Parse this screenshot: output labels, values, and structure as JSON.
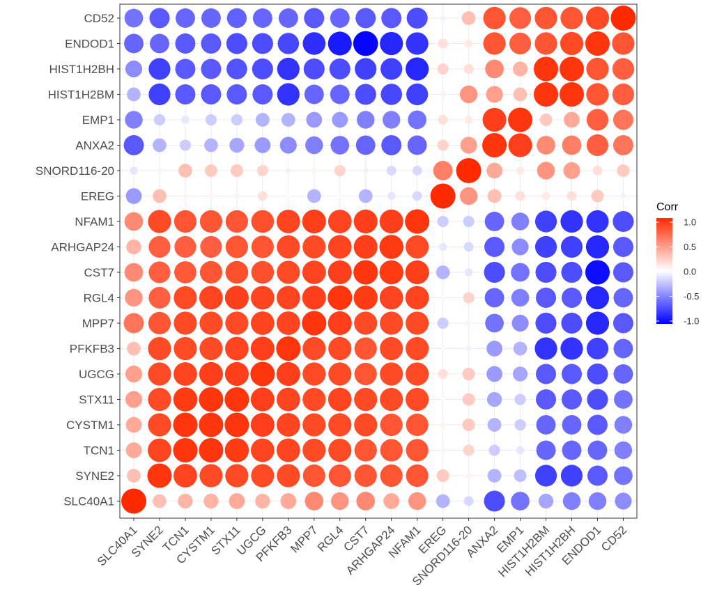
{
  "chart_data": {
    "type": "heatmap",
    "title": "",
    "xlabel": "",
    "ylabel": "",
    "x_labels": [
      "SLC40A1",
      "SYNE2",
      "TCN1",
      "CYSTM1",
      "STX11",
      "UGCG",
      "PFKFB3",
      "MPP7",
      "RGL4",
      "CST7",
      "ARHGAP24",
      "NFAM1",
      "EREG",
      "SNORD116-20",
      "ANXA2",
      "EMP1",
      "HIST1H2BM",
      "HIST1H2BH",
      "ENDOD1",
      "CD52"
    ],
    "y_labels": [
      "CD52",
      "ENDOD1",
      "HIST1H2BH",
      "HIST1H2BM",
      "EMP1",
      "ANXA2",
      "SNORD116-20",
      "EREG",
      "NFAM1",
      "ARHGAP24",
      "CST7",
      "RGL4",
      "MPP7",
      "PFKFB3",
      "UGCG",
      "STX11",
      "CYSTM1",
      "TCN1",
      "SYNE2",
      "SLC40A1"
    ],
    "values": [
      [
        -0.55,
        -0.65,
        -0.6,
        -0.6,
        -0.62,
        -0.6,
        -0.6,
        -0.65,
        -0.6,
        -0.65,
        -0.65,
        -0.7,
        -0.05,
        0.3,
        0.8,
        0.75,
        0.8,
        0.8,
        0.85,
        1.0
      ],
      [
        -0.6,
        -0.6,
        -0.65,
        -0.65,
        -0.7,
        -0.7,
        -0.72,
        -0.82,
        -0.9,
        -0.98,
        -0.85,
        -0.8,
        0.15,
        0.1,
        0.8,
        0.75,
        0.8,
        0.85,
        0.95,
        0.8
      ],
      [
        -0.45,
        -0.75,
        -0.65,
        -0.65,
        -0.68,
        -0.7,
        -0.8,
        -0.7,
        -0.7,
        -0.75,
        -0.75,
        -0.85,
        0.2,
        0.15,
        0.55,
        0.35,
        0.95,
        0.95,
        0.8,
        0.75
      ],
      [
        -0.3,
        -0.75,
        -0.65,
        -0.65,
        -0.65,
        -0.65,
        -0.8,
        -0.6,
        -0.6,
        -0.7,
        -0.72,
        -0.75,
        0.05,
        0.5,
        0.45,
        0.3,
        0.95,
        0.95,
        0.8,
        0.75
      ],
      [
        -0.5,
        -0.2,
        -0.1,
        -0.2,
        -0.2,
        -0.3,
        -0.3,
        -0.4,
        -0.4,
        -0.5,
        -0.5,
        -0.55,
        0.15,
        0.1,
        0.9,
        0.95,
        0.25,
        0.4,
        0.75,
        0.65
      ],
      [
        -0.65,
        -0.3,
        -0.2,
        -0.3,
        -0.35,
        -0.4,
        -0.45,
        -0.5,
        -0.55,
        -0.6,
        -0.65,
        -0.6,
        0.2,
        0.45,
        0.95,
        0.9,
        0.55,
        0.6,
        0.75,
        0.65
      ],
      [
        -0.1,
        0.05,
        0.3,
        0.25,
        0.25,
        0.2,
        -0.05,
        0.05,
        0.2,
        -0.05,
        -0.15,
        -0.15,
        0.6,
        1.0,
        0.4,
        0.1,
        0.5,
        0.45,
        0.15,
        0.25
      ],
      [
        -0.4,
        0.3,
        0.05,
        0.05,
        0.05,
        0.15,
        0.0,
        -0.3,
        0.0,
        -0.3,
        -0.1,
        -0.15,
        1.0,
        0.5,
        0.3,
        0.15,
        0.1,
        0.15,
        0.25,
        -0.05
      ],
      [
        0.55,
        0.85,
        0.8,
        0.8,
        0.8,
        0.82,
        0.88,
        0.9,
        0.88,
        0.9,
        0.9,
        0.95,
        -0.2,
        -0.2,
        -0.6,
        -0.5,
        -0.75,
        -0.8,
        -0.8,
        -0.7
      ],
      [
        0.35,
        0.75,
        0.75,
        0.75,
        0.8,
        0.8,
        0.85,
        0.85,
        0.88,
        0.9,
        0.92,
        0.85,
        -0.1,
        -0.15,
        -0.65,
        -0.45,
        -0.75,
        -0.75,
        -0.85,
        -0.65
      ],
      [
        0.55,
        0.75,
        0.78,
        0.8,
        0.82,
        0.82,
        0.85,
        0.88,
        0.9,
        0.95,
        0.92,
        0.9,
        -0.3,
        -0.1,
        -0.7,
        -0.55,
        -0.7,
        -0.7,
        -0.95,
        -0.65
      ],
      [
        0.5,
        0.75,
        0.85,
        0.88,
        0.9,
        0.88,
        0.88,
        0.9,
        0.95,
        0.92,
        0.88,
        0.88,
        0.0,
        0.2,
        -0.6,
        -0.5,
        -0.65,
        -0.65,
        -0.85,
        -0.6
      ],
      [
        0.65,
        0.8,
        0.85,
        0.85,
        0.85,
        0.88,
        0.88,
        0.95,
        0.9,
        0.85,
        0.85,
        0.85,
        -0.2,
        0.05,
        -0.55,
        -0.45,
        -0.7,
        -0.7,
        -0.85,
        -0.65
      ],
      [
        0.3,
        0.85,
        0.85,
        0.85,
        0.88,
        0.9,
        0.95,
        0.85,
        0.85,
        0.8,
        0.85,
        0.85,
        0.0,
        -0.05,
        -0.4,
        -0.3,
        -0.8,
        -0.8,
        -0.75,
        -0.6
      ],
      [
        0.45,
        0.85,
        0.88,
        0.9,
        0.9,
        0.95,
        0.9,
        0.85,
        0.85,
        0.8,
        0.85,
        0.85,
        0.15,
        0.25,
        -0.4,
        -0.35,
        -0.65,
        -0.65,
        -0.7,
        -0.6
      ],
      [
        0.45,
        0.85,
        0.92,
        0.95,
        0.95,
        0.9,
        0.88,
        0.85,
        0.88,
        0.85,
        0.85,
        0.85,
        0.0,
        0.25,
        -0.35,
        -0.2,
        -0.65,
        -0.65,
        -0.7,
        -0.55
      ],
      [
        0.4,
        0.85,
        0.95,
        0.95,
        0.95,
        0.9,
        0.88,
        0.85,
        0.85,
        0.85,
        0.8,
        0.8,
        0.05,
        0.25,
        -0.3,
        -0.2,
        -0.6,
        -0.6,
        -0.65,
        -0.5
      ],
      [
        0.4,
        0.88,
        0.95,
        0.95,
        0.92,
        0.88,
        0.88,
        0.85,
        0.85,
        0.8,
        0.8,
        0.8,
        0.05,
        0.2,
        -0.2,
        -0.1,
        -0.6,
        -0.6,
        -0.6,
        -0.5
      ],
      [
        0.3,
        0.95,
        0.88,
        0.85,
        0.85,
        0.85,
        0.85,
        0.8,
        0.8,
        0.8,
        0.8,
        0.8,
        0.25,
        0.05,
        -0.3,
        -0.25,
        -0.75,
        -0.75,
        -0.65,
        -0.55
      ],
      [
        1.0,
        0.3,
        0.35,
        0.35,
        0.4,
        0.35,
        0.4,
        0.55,
        0.5,
        0.55,
        0.4,
        0.5,
        -0.3,
        -0.15,
        -0.7,
        -0.55,
        -0.35,
        -0.5,
        -0.5,
        -0.45
      ]
    ],
    "legend": {
      "title": "Corr",
      "ticks": [
        "1.0",
        "0.5",
        "0.0",
        "-0.5",
        "-1.0"
      ],
      "tick_values": [
        1.0,
        0.5,
        0.0,
        -0.5,
        -1.0
      ],
      "placement": "right",
      "low_color": "#0000ff",
      "mid_color": "#ffffff",
      "high_color": "#ff2a00"
    },
    "range": [
      -1,
      1
    ]
  }
}
